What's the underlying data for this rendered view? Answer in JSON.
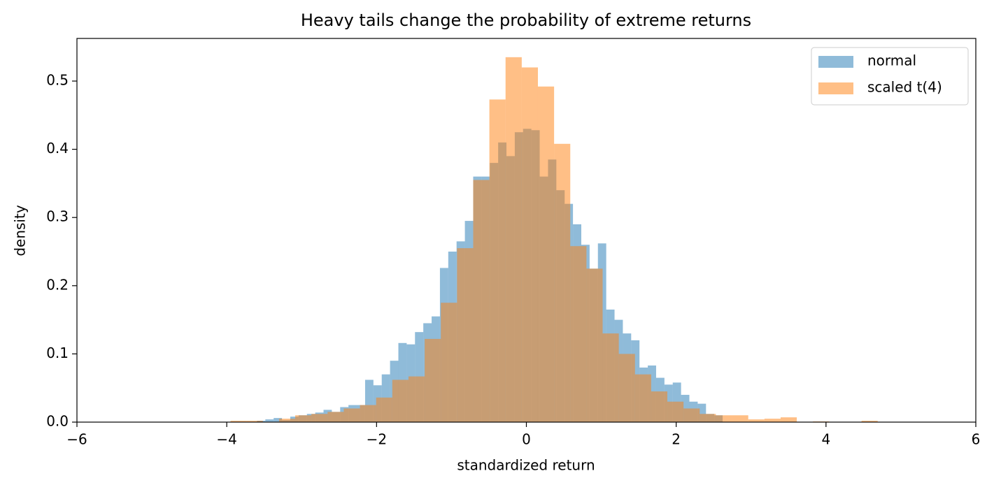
{
  "chart_data": {
    "type": "histogram",
    "title": "Heavy tails change the probability of extreme returns",
    "xlabel": "standardized return",
    "ylabel": "density",
    "xlim": [
      -6,
      6
    ],
    "ylim": [
      0,
      0.5625
    ],
    "xticks": [
      {
        "value": -6,
        "label": "−6"
      },
      {
        "value": -4,
        "label": "−4"
      },
      {
        "value": -2,
        "label": "−2"
      },
      0,
      2,
      4,
      6
    ],
    "yticks": [
      {
        "value": 0,
        "label": "0.0"
      },
      {
        "value": 0.1,
        "label": "0.1"
      },
      {
        "value": 0.2,
        "label": "0.2"
      },
      {
        "value": 0.3,
        "label": "0.3"
      },
      {
        "value": 0.4,
        "label": "0.4"
      },
      {
        "value": 0.5,
        "label": "0.5"
      }
    ],
    "legend": "upper right",
    "alpha": 0.5,
    "series": [
      {
        "name": "normal",
        "color": "#1f77b4",
        "bins": [
          -3.596,
          -3.485,
          -3.374,
          -3.263,
          -3.152,
          -3.041,
          -2.93,
          -2.819,
          -2.708,
          -2.597,
          -2.486,
          -2.375,
          -2.264,
          -2.153,
          -2.042,
          -1.931,
          -1.82,
          -1.709,
          -1.598,
          -1.487,
          -1.376,
          -1.265,
          -1.154,
          -1.043,
          -0.932,
          -0.821,
          -0.71,
          -0.599,
          -0.488,
          -0.377,
          -0.266,
          -0.155,
          -0.044,
          0.067,
          0.178,
          0.289,
          0.4,
          0.511,
          0.622,
          0.733,
          0.844,
          0.955,
          1.066,
          1.177,
          1.288,
          1.399,
          1.51,
          1.621,
          1.732,
          1.843,
          1.954,
          2.065,
          2.176,
          2.287,
          2.398,
          2.509,
          2.62
        ],
        "values": [
          0.002,
          0.004,
          0.006,
          0.003,
          0.008,
          0.01,
          0.012,
          0.014,
          0.018,
          0.015,
          0.022,
          0.025,
          0.025,
          0.062,
          0.054,
          0.07,
          0.09,
          0.116,
          0.114,
          0.132,
          0.145,
          0.155,
          0.226,
          0.25,
          0.265,
          0.295,
          0.36,
          0.36,
          0.38,
          0.41,
          0.39,
          0.425,
          0.43,
          0.428,
          0.36,
          0.385,
          0.34,
          0.32,
          0.29,
          0.26,
          0.225,
          0.262,
          0.165,
          0.15,
          0.13,
          0.12,
          0.08,
          0.083,
          0.065,
          0.055,
          0.058,
          0.04,
          0.03,
          0.027,
          0.012,
          0.01
        ]
      },
      {
        "name": "scaled t(4)",
        "color": "#ff7f0e",
        "bins": [
          -3.95,
          -3.734,
          -3.518,
          -3.302,
          -3.086,
          -2.87,
          -2.654,
          -2.438,
          -2.222,
          -2.006,
          -1.79,
          -1.574,
          -1.358,
          -1.142,
          -0.926,
          -0.71,
          -0.494,
          -0.278,
          -0.062,
          0.154,
          0.37,
          0.586,
          0.802,
          1.018,
          1.234,
          1.45,
          1.666,
          1.882,
          2.098,
          2.314,
          2.53,
          2.746,
          2.962,
          3.178,
          3.394,
          3.61,
          3.826,
          4.042,
          4.258,
          4.474,
          4.69
        ],
        "values": [
          0.002,
          0.002,
          0.0,
          0.005,
          0.01,
          0.012,
          0.015,
          0.02,
          0.025,
          0.036,
          0.062,
          0.067,
          0.122,
          0.175,
          0.255,
          0.355,
          0.473,
          0.535,
          0.52,
          0.492,
          0.408,
          0.258,
          0.225,
          0.13,
          0.1,
          0.07,
          0.045,
          0.03,
          0.02,
          0.012,
          0.01,
          0.01,
          0.004,
          0.005,
          0.007,
          0.0,
          0.001,
          0.0,
          0.0,
          0.002
        ]
      }
    ]
  }
}
